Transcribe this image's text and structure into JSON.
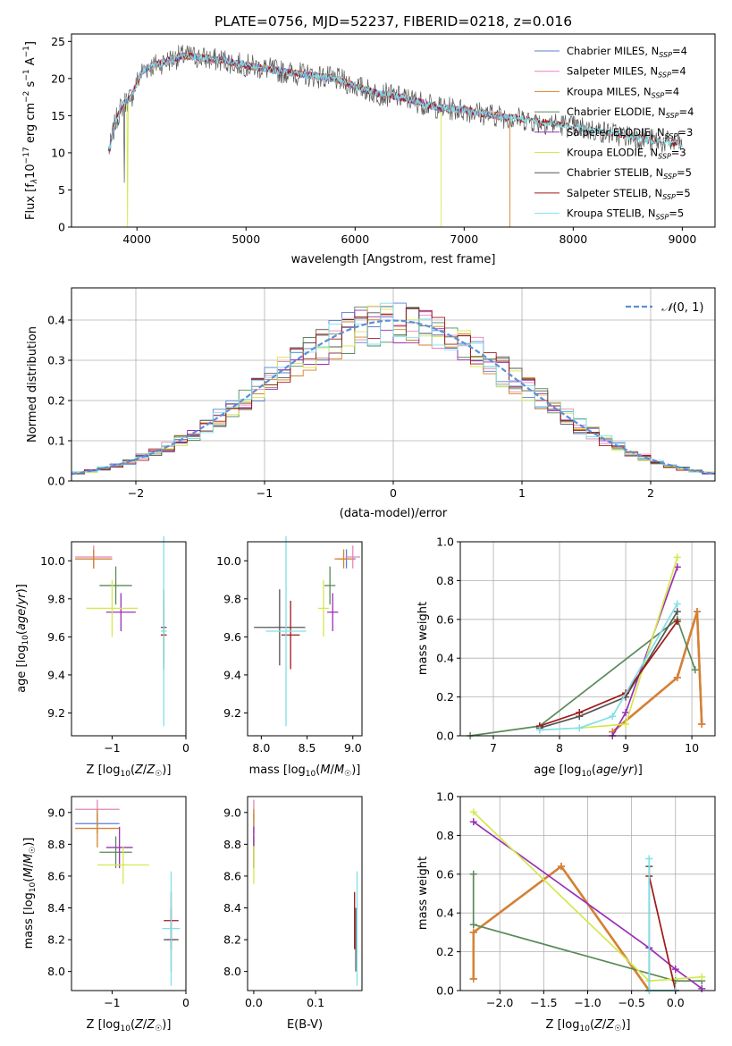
{
  "figure_title": "PLATE=0756, MJD=52237, FIBERID=0218, z=0.016",
  "colors": {
    "Chabrier MILES": "#5b7fd6",
    "Salpeter MILES": "#e586b8",
    "Kroupa MILES": "#d7822a",
    "Chabrier ELODIE": "#5a8a5a",
    "Salpeter ELODIE": "#9b2fb8",
    "Kroupa ELODIE": "#d4e84e",
    "Chabrier STELIB": "#555555",
    "Salpeter STELIB": "#a01818",
    "Kroupa STELIB": "#7fe0e8"
  },
  "chart_data": [
    {
      "type": "line",
      "title": "PLATE=0756, MJD=52237, FIBERID=0218, z=0.016",
      "xlabel": "wavelength [Angstrom, rest frame]",
      "ylabel": "Flux [f",
      "xlim": [
        3400,
        9300
      ],
      "ylim": [
        0,
        26
      ],
      "xticks": [
        "4000",
        "5000",
        "6000",
        "7000",
        "8000",
        "9000"
      ],
      "yticks": [
        "0",
        "5",
        "10",
        "15",
        "20",
        "25"
      ],
      "legend_loc": "upper right",
      "legend": [
        {
          "name": "Chabrier MILES",
          "nssp": "4"
        },
        {
          "name": "Salpeter MILES",
          "nssp": "4"
        },
        {
          "name": "Kroupa MILES",
          "nssp": "4"
        },
        {
          "name": "Chabrier ELODIE",
          "nssp": "4"
        },
        {
          "name": "Salpeter ELODIE",
          "nssp": "3"
        },
        {
          "name": "Kroupa ELODIE",
          "nssp": "3"
        },
        {
          "name": "Chabrier STELIB",
          "nssp": "5"
        },
        {
          "name": "Salpeter STELIB",
          "nssp": "5"
        },
        {
          "name": "Kroupa STELIB",
          "nssp": "5"
        }
      ],
      "spectrum_envelope": {
        "x": [
          3750,
          3800,
          3850,
          3900,
          3950,
          4000,
          4050,
          4100,
          4200,
          4300,
          4400,
          4500,
          4600,
          4700,
          4800,
          4900,
          5000,
          5100,
          5200,
          5300,
          5400,
          5500,
          5600,
          5700,
          5800,
          5900,
          6000,
          6100,
          6200,
          6300,
          6400,
          6500,
          6600,
          6700,
          6800,
          6900,
          7000,
          7100,
          7200,
          7300,
          7400,
          7500,
          7600,
          7700,
          7800,
          7900,
          8000,
          8200,
          8400,
          8600,
          8800,
          9000
        ],
        "y": [
          10.5,
          14,
          16,
          17,
          17.5,
          19.5,
          21,
          21.5,
          22,
          22.5,
          23,
          23,
          22.8,
          22.5,
          22.5,
          22,
          21.8,
          21.5,
          21.3,
          21,
          20.8,
          20.6,
          20.4,
          20.2,
          20,
          19.6,
          19,
          18.5,
          18,
          17.8,
          17.5,
          17.2,
          16.8,
          16.3,
          16,
          15.9,
          15.8,
          15.5,
          15.2,
          15,
          14.8,
          14.6,
          14.4,
          14.1,
          14,
          13.8,
          13.5,
          13,
          12.5,
          12,
          11.5,
          11.2
        ]
      }
    },
    {
      "type": "line",
      "xlabel": "(data-model)/error",
      "ylabel": "Normed distribution",
      "xlim": [
        -2.5,
        2.5
      ],
      "ylim": [
        0,
        0.48
      ],
      "xticks": [
        "−2",
        "−1",
        "0",
        "1",
        "2"
      ],
      "yticks": [
        "0.0",
        "0.1",
        "0.2",
        "0.3",
        "0.4"
      ],
      "grid": true,
      "legend_loc": "upper right",
      "reference_curve": "N(0,1)",
      "histogram_bin_width": 0.1,
      "histogram_shape": "approximately standard normal, all nine models"
    },
    {
      "type": "scatter",
      "xlabel": "Z [log10(Z/Z☉)]",
      "ylabel": "age  [log10(age/yr)]",
      "xlim": [
        -1.55,
        0
      ],
      "ylim": [
        9.08,
        10.1
      ],
      "xticks": [
        "−1",
        "0"
      ],
      "yticks": [
        "9.2",
        "9.4",
        "9.6",
        "9.8",
        "10.0"
      ],
      "points": [
        {
          "model": "Chabrier MILES",
          "x": -1.25,
          "y": 10.01,
          "xerr": 0.25,
          "yerr": 0.05
        },
        {
          "model": "Salpeter MILES",
          "x": -1.25,
          "y": 10.02,
          "xerr": 0.25,
          "yerr": 0.06
        },
        {
          "model": "Kroupa MILES",
          "x": -1.25,
          "y": 10.01,
          "xerr": 0.25,
          "yerr": 0.05
        },
        {
          "model": "Chabrier ELODIE",
          "x": -0.95,
          "y": 9.87,
          "xerr": 0.22,
          "yerr": 0.1
        },
        {
          "model": "Salpeter ELODIE",
          "x": -0.88,
          "y": 9.73,
          "xerr": 0.2,
          "yerr": 0.1
        },
        {
          "model": "Kroupa ELODIE",
          "x": -1.0,
          "y": 9.75,
          "xerr": 0.35,
          "yerr": 0.15
        },
        {
          "model": "Chabrier STELIB",
          "x": -0.3,
          "y": 9.65,
          "xerr": 0.04,
          "yerr": 0.2
        },
        {
          "model": "Salpeter STELIB",
          "x": -0.3,
          "y": 9.61,
          "xerr": 0.04,
          "yerr": 0.18
        },
        {
          "model": "Kroupa STELIB",
          "x": -0.3,
          "y": 9.63,
          "xerr": 0.04,
          "yerr": 0.5
        }
      ]
    },
    {
      "type": "scatter",
      "xlabel": "mass [log10(M/M☉)]",
      "xlim": [
        7.85,
        9.1
      ],
      "ylim": [
        9.08,
        10.1
      ],
      "xticks": [
        "8.0",
        "8.5",
        "9.0"
      ],
      "yticks": [
        "9.2",
        "9.4",
        "9.6",
        "9.8",
        "10.0"
      ],
      "points": [
        {
          "model": "Chabrier MILES",
          "x": 8.93,
          "y": 10.01,
          "xerr": 0.1,
          "yerr": 0.05
        },
        {
          "model": "Salpeter MILES",
          "x": 9.0,
          "y": 10.02,
          "xerr": 0.08,
          "yerr": 0.06
        },
        {
          "model": "Kroupa MILES",
          "x": 8.9,
          "y": 10.01,
          "xerr": 0.1,
          "yerr": 0.05
        },
        {
          "model": "Chabrier ELODIE",
          "x": 8.75,
          "y": 9.87,
          "xerr": 0.06,
          "yerr": 0.1
        },
        {
          "model": "Salpeter ELODIE",
          "x": 8.78,
          "y": 9.73,
          "xerr": 0.06,
          "yerr": 0.1
        },
        {
          "model": "Kroupa ELODIE",
          "x": 8.68,
          "y": 9.75,
          "xerr": 0.06,
          "yerr": 0.15
        },
        {
          "model": "Chabrier STELIB",
          "x": 8.2,
          "y": 9.65,
          "xerr": 0.28,
          "yerr": 0.2
        },
        {
          "model": "Salpeter STELIB",
          "x": 8.32,
          "y": 9.61,
          "xerr": 0.1,
          "yerr": 0.18
        },
        {
          "model": "Kroupa STELIB",
          "x": 8.27,
          "y": 9.63,
          "xerr": 0.22,
          "yerr": 0.5
        }
      ]
    },
    {
      "type": "line",
      "xlabel": "age  [log10(age/yr)]",
      "ylabel": "mass weight",
      "xlim": [
        6.5,
        10.35
      ],
      "ylim": [
        0,
        1.0
      ],
      "xticks": [
        "7",
        "8",
        "9",
        "10"
      ],
      "yticks": [
        "0.0",
        "0.2",
        "0.4",
        "0.6",
        "0.8",
        "1.0"
      ],
      "grid": true,
      "series": [
        {
          "model": "Chabrier MILES",
          "x": [
            8.8,
            9.78,
            10.08,
            10.15
          ],
          "y": [
            0.02,
            0.3,
            0.64,
            0.06
          ]
        },
        {
          "model": "Salpeter MILES",
          "x": [
            8.8,
            9.78,
            10.08,
            10.15
          ],
          "y": [
            0.02,
            0.3,
            0.64,
            0.06
          ]
        },
        {
          "model": "Kroupa MILES",
          "x": [
            8.8,
            9.78,
            10.08,
            10.15
          ],
          "y": [
            0.02,
            0.3,
            0.64,
            0.06
          ]
        },
        {
          "model": "Chabrier ELODIE",
          "x": [
            6.65,
            7.7,
            9.78,
            10.05
          ],
          "y": [
            0.0,
            0.05,
            0.6,
            0.34
          ]
        },
        {
          "model": "Salpeter ELODIE",
          "x": [
            8.8,
            9.0,
            9.78
          ],
          "y": [
            0.0,
            0.12,
            0.87
          ]
        },
        {
          "model": "Kroupa ELODIE",
          "x": [
            8.3,
            9.0,
            9.78
          ],
          "y": [
            0.04,
            0.06,
            0.92
          ]
        },
        {
          "model": "Chabrier STELIB",
          "x": [
            7.7,
            8.3,
            9.0,
            9.78
          ],
          "y": [
            0.04,
            0.1,
            0.2,
            0.64
          ]
        },
        {
          "model": "Salpeter STELIB",
          "x": [
            7.7,
            8.3,
            9.0,
            9.78
          ],
          "y": [
            0.05,
            0.12,
            0.22,
            0.59
          ]
        },
        {
          "model": "Kroupa STELIB",
          "x": [
            7.7,
            8.3,
            8.8,
            9.78
          ],
          "y": [
            0.03,
            0.04,
            0.1,
            0.68
          ]
        }
      ]
    },
    {
      "type": "scatter",
      "xlabel": "Z [log10(Z/Z☉)]",
      "ylabel": "mass [log10(M/M☉)]",
      "xlim": [
        -1.55,
        0
      ],
      "ylim": [
        7.88,
        9.1
      ],
      "xticks": [
        "−1",
        "0"
      ],
      "yticks": [
        "8.0",
        "8.2",
        "8.4",
        "8.6",
        "8.8",
        "9.0"
      ],
      "points": [
        {
          "model": "Chabrier MILES",
          "x": -1.2,
          "y": 8.93,
          "xerr": 0.3,
          "yerr": 0.06
        },
        {
          "model": "Salpeter MILES",
          "x": -1.2,
          "y": 9.02,
          "xerr": 0.3,
          "yerr": 0.06
        },
        {
          "model": "Kroupa MILES",
          "x": -1.2,
          "y": 8.9,
          "xerr": 0.3,
          "yerr": 0.12
        },
        {
          "model": "Chabrier ELODIE",
          "x": -0.95,
          "y": 8.75,
          "xerr": 0.22,
          "yerr": 0.1
        },
        {
          "model": "Salpeter ELODIE",
          "x": -0.9,
          "y": 8.78,
          "xerr": 0.18,
          "yerr": 0.13
        },
        {
          "model": "Kroupa ELODIE",
          "x": -0.85,
          "y": 8.67,
          "xerr": 0.35,
          "yerr": 0.12
        },
        {
          "model": "Chabrier STELIB",
          "x": -0.2,
          "y": 8.2,
          "xerr": 0.1,
          "yerr": 0.2
        },
        {
          "model": "Salpeter STELIB",
          "x": -0.2,
          "y": 8.32,
          "xerr": 0.1,
          "yerr": 0.18
        },
        {
          "model": "Kroupa STELIB",
          "x": -0.2,
          "y": 8.27,
          "xerr": 0.12,
          "yerr": 0.36
        }
      ]
    },
    {
      "type": "scatter",
      "xlabel": "E(B-V)",
      "xlim": [
        -0.01,
        0.175
      ],
      "ylim": [
        7.88,
        9.1
      ],
      "xticks": [
        "0.0",
        "0.1"
      ],
      "yticks": [
        "8.0",
        "8.2",
        "8.4",
        "8.6",
        "8.8",
        "9.0"
      ],
      "points": [
        {
          "model": "Chabrier MILES",
          "x": 0.0,
          "y": 8.93,
          "yerr": 0.06
        },
        {
          "model": "Salpeter MILES",
          "x": 0.0,
          "y": 9.02,
          "yerr": 0.06
        },
        {
          "model": "Kroupa MILES",
          "x": 0.0,
          "y": 8.9,
          "yerr": 0.12
        },
        {
          "model": "Chabrier ELODIE",
          "x": 0.0,
          "y": 8.75,
          "yerr": 0.1
        },
        {
          "model": "Salpeter ELODIE",
          "x": 0.0,
          "y": 8.78,
          "yerr": 0.13
        },
        {
          "model": "Kroupa ELODIE",
          "x": 0.0,
          "y": 8.67,
          "yerr": 0.12
        },
        {
          "model": "Chabrier STELIB",
          "x": 0.165,
          "y": 8.2,
          "yerr": 0.2
        },
        {
          "model": "Salpeter STELIB",
          "x": 0.163,
          "y": 8.32,
          "yerr": 0.18
        },
        {
          "model": "Kroupa STELIB",
          "x": 0.167,
          "y": 8.27,
          "yerr": 0.36
        }
      ]
    },
    {
      "type": "line",
      "xlabel": "Z [log10(Z/Z☉)]",
      "ylabel": "mass weight",
      "xlim": [
        -2.45,
        0.45
      ],
      "ylim": [
        0,
        1.0
      ],
      "xticks": [
        "−2.0",
        "−1.5",
        "−1.0",
        "−0.5",
        "0.0"
      ],
      "yticks": [
        "0.0",
        "0.2",
        "0.4",
        "0.6",
        "0.8",
        "1.0"
      ],
      "grid": true,
      "series": [
        {
          "model": "Chabrier MILES",
          "x": [
            -2.3,
            -2.3,
            -1.3,
            -0.3
          ],
          "y": [
            0.06,
            0.3,
            0.64,
            0.0
          ]
        },
        {
          "model": "Salpeter MILES",
          "x": [
            -2.3,
            -2.3,
            -1.3,
            -0.3
          ],
          "y": [
            0.06,
            0.3,
            0.64,
            0.0
          ]
        },
        {
          "model": "Kroupa MILES",
          "x": [
            -2.3,
            -2.3,
            -1.3,
            -0.3
          ],
          "y": [
            0.06,
            0.3,
            0.64,
            0.0
          ]
        },
        {
          "model": "Chabrier ELODIE",
          "x": [
            -2.3,
            -2.3,
            0.0,
            0.3
          ],
          "y": [
            0.6,
            0.34,
            0.05,
            0.05
          ]
        },
        {
          "model": "Salpeter ELODIE",
          "x": [
            -2.3,
            -0.3,
            0.0,
            0.3
          ],
          "y": [
            0.87,
            0.22,
            0.11,
            0.01
          ]
        },
        {
          "model": "Kroupa ELODIE",
          "x": [
            -2.3,
            -0.3,
            0.3
          ],
          "y": [
            0.92,
            0.05,
            0.07
          ]
        },
        {
          "model": "Chabrier STELIB",
          "x": [
            -0.3,
            -0.3,
            0.0
          ],
          "y": [
            0.64,
            0.0,
            0.0
          ]
        },
        {
          "model": "Salpeter STELIB",
          "x": [
            -0.3,
            0.0
          ],
          "y": [
            0.59,
            0.0
          ]
        },
        {
          "model": "Kroupa STELIB",
          "x": [
            -0.3,
            -0.3,
            0.0
          ],
          "y": [
            0.68,
            0.0,
            0.0
          ]
        }
      ]
    }
  ]
}
